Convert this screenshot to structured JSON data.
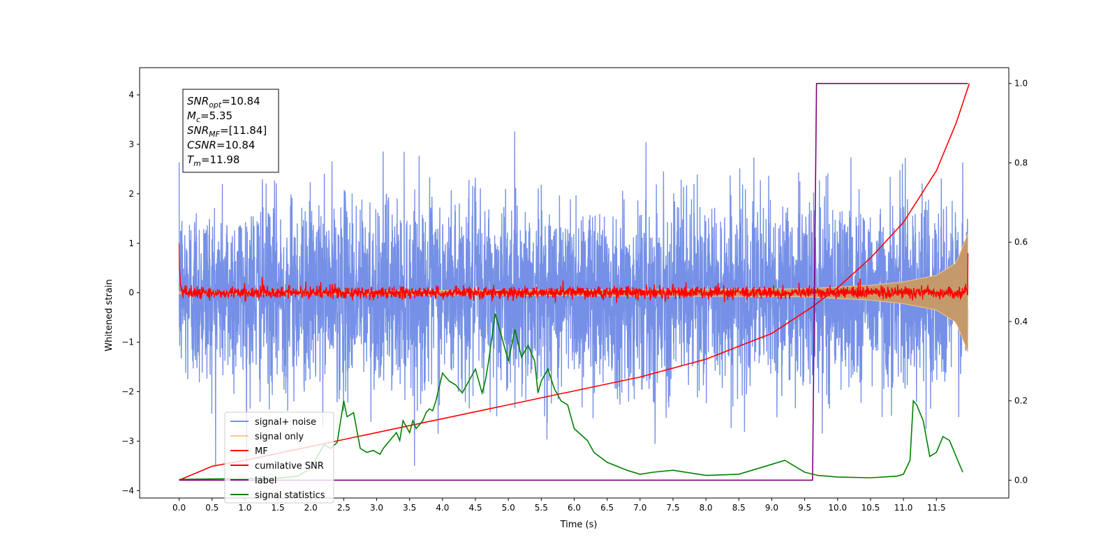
{
  "chart_data": {
    "type": "line",
    "xlabel": "Time (s)",
    "ylabel": "Whitened strain",
    "xlim": [
      -0.6,
      12.6
    ],
    "ylim": [
      -4.15,
      4.55
    ],
    "y2lim": [
      -0.045,
      1.04
    ],
    "x_ticks": [
      "0.0",
      "0.5",
      "1.0",
      "1.5",
      "2.0",
      "2.5",
      "3.0",
      "3.5",
      "4.0",
      "4.5",
      "5.0",
      "5.5",
      "6.0",
      "6.5",
      "7.0",
      "7.5",
      "8.0",
      "8.5",
      "9.0",
      "9.5",
      "10.0",
      "10.5",
      "11.0",
      "11.5"
    ],
    "y_ticks": [
      "−4",
      "−3",
      "−2",
      "−1",
      "0",
      "1",
      "2",
      "3",
      "4"
    ],
    "y2_ticks": [
      "0.0",
      "0.2",
      "0.4",
      "0.6",
      "0.8",
      "1.0"
    ],
    "annotation": {
      "lines": [
        {
          "main": "SNR",
          "sub": "opt",
          "rest": "=10.84"
        },
        {
          "main": "M",
          "sub": "c",
          "rest": "=5.35"
        },
        {
          "main": "SNR",
          "sub": "MF",
          "rest": "=[11.84]"
        },
        {
          "main": "CSNR",
          "sub": "",
          "rest": "=10.84"
        },
        {
          "main": "T",
          "sub": "m",
          "rest": "=11.98"
        }
      ]
    },
    "legend_position": "lower-left",
    "series": [
      {
        "name": "signal+ noise",
        "color": "#7590e6",
        "axis": "left",
        "description": "whitened noise, roughly Gaussian about 0 with spikes to about ±3.6"
      },
      {
        "name": "signal only",
        "color": "#f5c78a",
        "axis": "left",
        "amplitude_envelope": {
          "t": [
            0,
            9.5,
            10.5,
            11.0,
            11.5,
            11.8,
            11.98
          ],
          "amp": [
            0.02,
            0.08,
            0.15,
            0.22,
            0.35,
            0.6,
            1.2
          ]
        }
      },
      {
        "name": "MF",
        "color": "#ff0000",
        "axis": "left",
        "description": "matched filter output near 0, starting at 1.0 and ending at about 0.8",
        "start": 1.0,
        "end": 0.8
      },
      {
        "name": "cumilative SNR",
        "color": "#ff0000",
        "axis": "right",
        "t": [
          0,
          0.5,
          1.0,
          2.0,
          3.0,
          4.0,
          5.0,
          6.0,
          7.0,
          8.0,
          9.0,
          9.6,
          10.0,
          10.5,
          11.0,
          11.5,
          11.8,
          12.0
        ],
        "v": [
          0,
          0.035,
          0.05,
          0.085,
          0.12,
          0.155,
          0.19,
          0.225,
          0.26,
          0.305,
          0.37,
          0.435,
          0.485,
          0.56,
          0.65,
          0.78,
          0.9,
          1.0
        ]
      },
      {
        "name": "label",
        "color": "#800080",
        "axis": "right",
        "t": [
          0,
          9.62,
          9.68,
          11.98
        ],
        "v": [
          0,
          0,
          1,
          1
        ]
      },
      {
        "name": "signal statistics",
        "color": "#008000",
        "axis": "right",
        "t": [
          0,
          0.5,
          1.0,
          1.5,
          1.8,
          2.0,
          2.1,
          2.2,
          2.3,
          2.4,
          2.5,
          2.55,
          2.65,
          2.75,
          2.85,
          2.95,
          3.05,
          3.1,
          3.2,
          3.3,
          3.35,
          3.4,
          3.5,
          3.55,
          3.6,
          3.65,
          3.7,
          3.75,
          3.8,
          3.85,
          3.9,
          4.0,
          4.1,
          4.2,
          4.3,
          4.4,
          4.5,
          4.6,
          4.65,
          4.7,
          4.8,
          4.9,
          5.0,
          5.05,
          5.1,
          5.2,
          5.3,
          5.4,
          5.45,
          5.5,
          5.6,
          5.7,
          5.8,
          5.9,
          6.0,
          6.2,
          6.3,
          6.5,
          6.8,
          7.0,
          7.2,
          7.5,
          8.0,
          8.5,
          9.0,
          9.2,
          9.5,
          9.7,
          10.0,
          10.5,
          10.9,
          11.0,
          11.1,
          11.15,
          11.2,
          11.3,
          11.4,
          11.5,
          11.6,
          11.7,
          11.8,
          11.9
        ],
        "v": [
          0.002,
          0.003,
          0.004,
          0.005,
          0.01,
          0.03,
          0.06,
          0.09,
          0.08,
          0.095,
          0.2,
          0.16,
          0.17,
          0.08,
          0.07,
          0.075,
          0.065,
          0.08,
          0.1,
          0.12,
          0.1,
          0.15,
          0.12,
          0.15,
          0.13,
          0.14,
          0.15,
          0.17,
          0.18,
          0.175,
          0.2,
          0.27,
          0.25,
          0.24,
          0.22,
          0.25,
          0.28,
          0.22,
          0.25,
          0.3,
          0.42,
          0.36,
          0.3,
          0.34,
          0.38,
          0.31,
          0.34,
          0.3,
          0.22,
          0.25,
          0.28,
          0.23,
          0.2,
          0.19,
          0.13,
          0.1,
          0.07,
          0.045,
          0.025,
          0.015,
          0.02,
          0.025,
          0.012,
          0.015,
          0.04,
          0.05,
          0.02,
          0.012,
          0.008,
          0.006,
          0.01,
          0.015,
          0.05,
          0.2,
          0.19,
          0.15,
          0.06,
          0.07,
          0.11,
          0.1,
          0.06,
          0.02
        ]
      }
    ]
  }
}
